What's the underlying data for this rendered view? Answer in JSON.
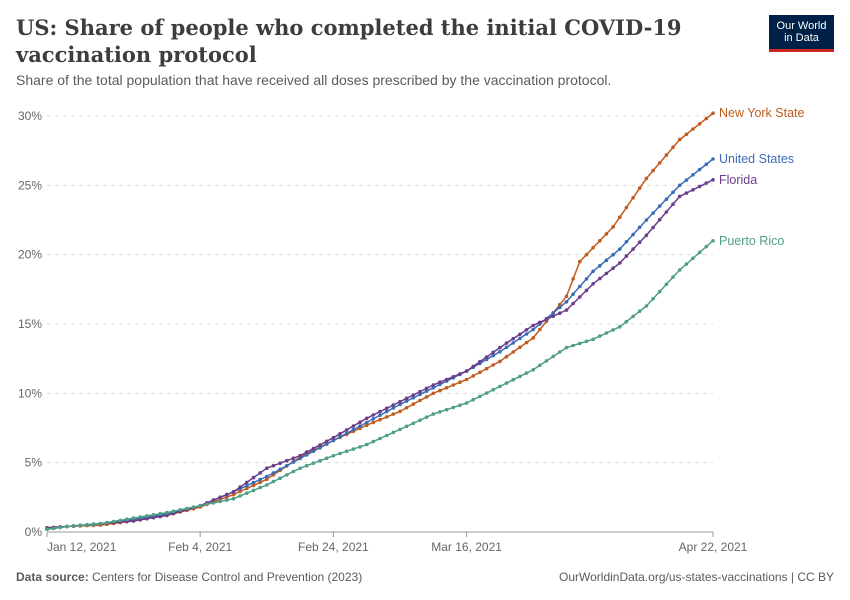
{
  "header": {
    "title": "US: Share of people who completed the initial COVID-19 vaccination protocol",
    "subtitle": "Share of the total population that have received all doses prescribed by the vaccination protocol.",
    "logo_line1": "Our World",
    "logo_line2": "in Data"
  },
  "footer": {
    "source_label": "Data source:",
    "source_text": "Centers for Disease Control and Prevention (2023)",
    "url_license": "OurWorldinData.org/us-states-vaccinations | CC BY"
  },
  "chart_data": {
    "type": "line",
    "title": "US: Share of people who completed the initial COVID-19 vaccination protocol",
    "subtitle": "Share of the total population that have received all doses prescribed by the vaccination protocol.",
    "x_start_date": "2021-01-12",
    "x_end_date": "2021-04-22",
    "xticks": [
      "Jan 12, 2021",
      "Feb 4, 2021",
      "Feb 24, 2021",
      "Mar 16, 2021",
      "Apr 22, 2021"
    ],
    "yticks": [
      "0%",
      "5%",
      "10%",
      "15%",
      "20%",
      "25%",
      "30%"
    ],
    "ylim": [
      0,
      30
    ],
    "grid": true,
    "legend": "right, line-end labels",
    "series": [
      {
        "name": "New York State",
        "color": "#c15b1e",
        "points": [
          [
            "2021-01-12",
            0.3
          ],
          [
            "2021-01-15",
            0.4
          ],
          [
            "2021-01-20",
            0.5
          ],
          [
            "2021-01-25",
            0.8
          ],
          [
            "2021-01-30",
            1.2
          ],
          [
            "2021-02-04",
            1.8
          ],
          [
            "2021-02-09",
            2.7
          ],
          [
            "2021-02-14",
            3.8
          ],
          [
            "2021-02-19",
            5.4
          ],
          [
            "2021-02-24",
            6.6
          ],
          [
            "2021-03-01",
            7.7
          ],
          [
            "2021-03-06",
            8.7
          ],
          [
            "2021-03-11",
            10.0
          ],
          [
            "2021-03-16",
            11.0
          ],
          [
            "2021-03-21",
            12.3
          ],
          [
            "2021-03-26",
            14.0
          ],
          [
            "2021-03-31",
            17.0
          ],
          [
            "2021-04-02",
            19.5
          ],
          [
            "2021-04-07",
            22.0
          ],
          [
            "2021-04-12",
            25.5
          ],
          [
            "2021-04-17",
            28.3
          ],
          [
            "2021-04-22",
            30.2
          ]
        ]
      },
      {
        "name": "United States",
        "color": "#3b6cb3",
        "points": [
          [
            "2021-01-12",
            0.2
          ],
          [
            "2021-01-15",
            0.4
          ],
          [
            "2021-01-20",
            0.6
          ],
          [
            "2021-01-25",
            0.9
          ],
          [
            "2021-01-30",
            1.3
          ],
          [
            "2021-02-04",
            1.9
          ],
          [
            "2021-02-09",
            2.9
          ],
          [
            "2021-02-14",
            4.0
          ],
          [
            "2021-02-19",
            5.3
          ],
          [
            "2021-02-24",
            6.6
          ],
          [
            "2021-03-01",
            7.9
          ],
          [
            "2021-03-06",
            9.2
          ],
          [
            "2021-03-11",
            10.4
          ],
          [
            "2021-03-16",
            11.6
          ],
          [
            "2021-03-21",
            13.0
          ],
          [
            "2021-03-26",
            14.6
          ],
          [
            "2021-03-31",
            16.6
          ],
          [
            "2021-04-04",
            18.8
          ],
          [
            "2021-04-08",
            20.4
          ],
          [
            "2021-04-12",
            22.5
          ],
          [
            "2021-04-17",
            25.0
          ],
          [
            "2021-04-22",
            26.9
          ]
        ]
      },
      {
        "name": "Florida",
        "color": "#6b3d8c",
        "points": [
          [
            "2021-01-12",
            0.3
          ],
          [
            "2021-01-15",
            0.4
          ],
          [
            "2021-01-20",
            0.6
          ],
          [
            "2021-01-25",
            0.8
          ],
          [
            "2021-01-30",
            1.2
          ],
          [
            "2021-02-04",
            1.9
          ],
          [
            "2021-02-09",
            2.9
          ],
          [
            "2021-02-14",
            4.6
          ],
          [
            "2021-02-19",
            5.5
          ],
          [
            "2021-02-24",
            6.8
          ],
          [
            "2021-03-01",
            8.2
          ],
          [
            "2021-03-06",
            9.4
          ],
          [
            "2021-03-11",
            10.6
          ],
          [
            "2021-03-16",
            11.6
          ],
          [
            "2021-03-21",
            13.3
          ],
          [
            "2021-03-26",
            14.9
          ],
          [
            "2021-03-31",
            16.0
          ],
          [
            "2021-04-04",
            17.9
          ],
          [
            "2021-04-08",
            19.4
          ],
          [
            "2021-04-12",
            21.4
          ],
          [
            "2021-04-17",
            24.2
          ],
          [
            "2021-04-22",
            25.4
          ]
        ]
      },
      {
        "name": "Puerto Rico",
        "color": "#4f9e88",
        "points": [
          [
            "2021-01-12",
            0.2
          ],
          [
            "2021-01-15",
            0.4
          ],
          [
            "2021-01-20",
            0.6
          ],
          [
            "2021-01-25",
            1.0
          ],
          [
            "2021-01-30",
            1.4
          ],
          [
            "2021-02-04",
            1.9
          ],
          [
            "2021-02-09",
            2.4
          ],
          [
            "2021-02-14",
            3.4
          ],
          [
            "2021-02-19",
            4.6
          ],
          [
            "2021-02-24",
            5.5
          ],
          [
            "2021-03-01",
            6.3
          ],
          [
            "2021-03-06",
            7.4
          ],
          [
            "2021-03-11",
            8.5
          ],
          [
            "2021-03-16",
            9.3
          ],
          [
            "2021-03-21",
            10.5
          ],
          [
            "2021-03-26",
            11.7
          ],
          [
            "2021-03-31",
            13.3
          ],
          [
            "2021-04-04",
            13.9
          ],
          [
            "2021-04-08",
            14.8
          ],
          [
            "2021-04-12",
            16.3
          ],
          [
            "2021-04-17",
            18.9
          ],
          [
            "2021-04-22",
            21.0
          ]
        ]
      }
    ]
  }
}
